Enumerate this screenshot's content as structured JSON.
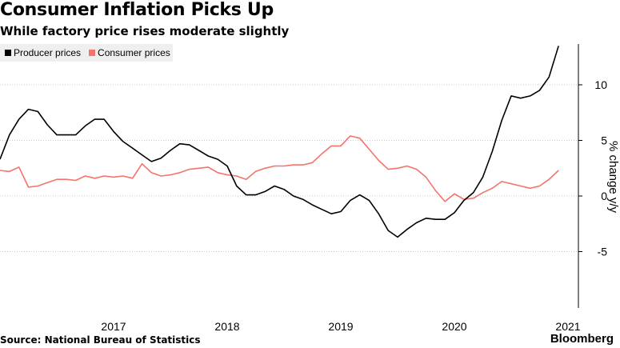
{
  "header": {
    "title": "Consumer Inflation Picks Up",
    "subtitle": "While factory price rises moderate slightly"
  },
  "footer": {
    "source": "Source: National Bureau of Statistics",
    "logo": "Bloomberg"
  },
  "colors": {
    "producer": "#000000",
    "consumer": "#f4736b",
    "grid": "#c8c8c8",
    "legend_bg": "#efefef"
  },
  "chart_data": {
    "type": "line",
    "ylabel": "% change y/y",
    "ylim": [
      -10,
      14
    ],
    "yticks": [
      10,
      5,
      0,
      -5
    ],
    "xlim": [
      2016.5,
      2021.5
    ],
    "xticks": [
      2017,
      2018,
      2019,
      2020,
      2021
    ],
    "grid": true,
    "legend_position": "top-left",
    "series": [
      {
        "name": "Producer prices",
        "color": "#000000",
        "x": [
          2016.5,
          2016.583,
          2016.667,
          2016.75,
          2016.833,
          2016.917,
          2017.0,
          2017.083,
          2017.167,
          2017.25,
          2017.333,
          2017.417,
          2017.5,
          2017.583,
          2017.667,
          2017.75,
          2017.833,
          2017.917,
          2018.0,
          2018.083,
          2018.167,
          2018.25,
          2018.333,
          2018.417,
          2018.5,
          2018.583,
          2018.667,
          2018.75,
          2018.833,
          2018.917,
          2019.0,
          2019.083,
          2019.167,
          2019.25,
          2019.333,
          2019.417,
          2019.5,
          2019.583,
          2019.667,
          2019.75,
          2019.833,
          2019.917,
          2020.0,
          2020.083,
          2020.167,
          2020.25,
          2020.333,
          2020.417,
          2020.5,
          2020.583,
          2020.667,
          2020.75,
          2020.833,
          2020.917,
          2021.0,
          2021.083,
          2021.167,
          2021.25,
          2021.333,
          2021.417
        ],
        "values": [
          3.3,
          5.5,
          6.9,
          7.8,
          7.6,
          6.4,
          5.5,
          5.5,
          5.5,
          6.3,
          6.9,
          6.9,
          5.8,
          4.9,
          4.3,
          3.7,
          3.1,
          3.4,
          4.1,
          4.7,
          4.6,
          4.1,
          3.6,
          3.3,
          2.7,
          0.9,
          0.1,
          0.1,
          0.4,
          0.9,
          0.6,
          0.0,
          -0.3,
          -0.8,
          -1.2,
          -1.6,
          -1.4,
          -0.4,
          0.1,
          -0.4,
          -1.6,
          -3.1,
          -3.7,
          -3.0,
          -2.4,
          -2.0,
          -2.1,
          -2.1,
          -1.5,
          -0.4,
          0.3,
          1.7,
          4.0,
          6.8,
          9.0,
          8.8,
          9.0,
          9.5,
          10.7,
          13.5
        ]
      },
      {
        "name": "Consumer prices",
        "color": "#f4736b",
        "x": [
          2016.5,
          2016.583,
          2016.667,
          2016.75,
          2016.833,
          2016.917,
          2017.0,
          2017.083,
          2017.167,
          2017.25,
          2017.333,
          2017.417,
          2017.5,
          2017.583,
          2017.667,
          2017.75,
          2017.833,
          2017.917,
          2018.0,
          2018.083,
          2018.167,
          2018.25,
          2018.333,
          2018.417,
          2018.5,
          2018.583,
          2018.667,
          2018.75,
          2018.833,
          2018.917,
          2019.0,
          2019.083,
          2019.167,
          2019.25,
          2019.333,
          2019.417,
          2019.5,
          2019.583,
          2019.667,
          2019.75,
          2019.833,
          2019.917,
          2020.0,
          2020.083,
          2020.167,
          2020.25,
          2020.333,
          2020.417,
          2020.5,
          2020.583,
          2020.667,
          2020.75,
          2020.833,
          2020.917,
          2021.0,
          2021.083,
          2021.167,
          2021.25,
          2021.333,
          2021.417
        ],
        "values": [
          2.3,
          2.2,
          2.6,
          0.8,
          0.9,
          1.2,
          1.5,
          1.5,
          1.4,
          1.8,
          1.6,
          1.8,
          1.7,
          1.8,
          1.6,
          2.9,
          2.1,
          1.8,
          1.9,
          2.1,
          2.4,
          2.5,
          2.6,
          2.1,
          1.9,
          1.8,
          1.5,
          2.2,
          2.5,
          2.7,
          2.7,
          2.8,
          2.8,
          3.0,
          3.8,
          4.5,
          4.5,
          5.4,
          5.2,
          4.2,
          3.2,
          2.4,
          2.5,
          2.7,
          2.4,
          1.7,
          0.5,
          -0.5,
          0.2,
          -0.3,
          -0.2,
          0.3,
          0.7,
          1.3,
          1.1,
          0.9,
          0.7,
          0.9,
          1.5,
          2.3
        ]
      }
    ]
  }
}
